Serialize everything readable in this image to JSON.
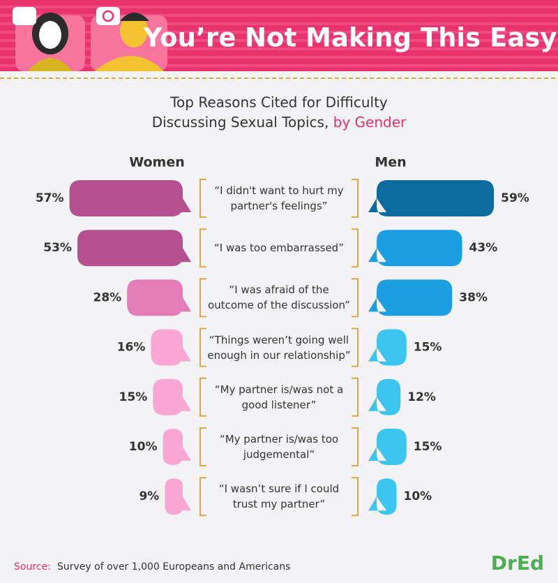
{
  "chart_data": {
    "type": "butterfly-bar",
    "title": "You’re Not Making This Easy",
    "subtitle": "Top Reasons Cited for Difficulty Discussing Sexual Topics,",
    "subtitle_highlight": "by Gender",
    "categories": [
      "“I didn't want to hurt my partner's feelings”",
      "“I was too embarrassed”",
      "“I was afraid of the outcome of the discussion”",
      "“Things weren’t going well enough in our relationship”",
      "“My partner is/was not a good listener”",
      "“My partner is/was too judgemental”",
      "“I wasn’t sure if I could trust my partner”"
    ],
    "series": [
      {
        "name": "Women",
        "colors": [
          "#b5508f",
          "#b5508f",
          "#e47db7",
          "#f9a8d1",
          "#f9a8d1",
          "#f9a8d1",
          "#f9a8d1"
        ],
        "values": [
          57,
          53,
          28,
          16,
          15,
          10,
          9
        ],
        "value_labels": [
          "57%",
          "53%",
          "28%",
          "16%",
          "15%",
          "10%",
          "9%"
        ]
      },
      {
        "name": "Men",
        "colors": [
          "#0b6a9e",
          "#1c9fe0",
          "#1c9fe0",
          "#3cc5ef",
          "#3cc5ef",
          "#3cc5ef",
          "#3cc5ef"
        ],
        "values": [
          59,
          43,
          38,
          15,
          12,
          15,
          10
        ],
        "value_labels": [
          "59%",
          "43%",
          "38%",
          "15%",
          "12%",
          "15%",
          "10%"
        ]
      }
    ],
    "source_label": "Source:",
    "source": "Survey of over 1,000 Europeans and Americans",
    "logo": "DrEd"
  }
}
